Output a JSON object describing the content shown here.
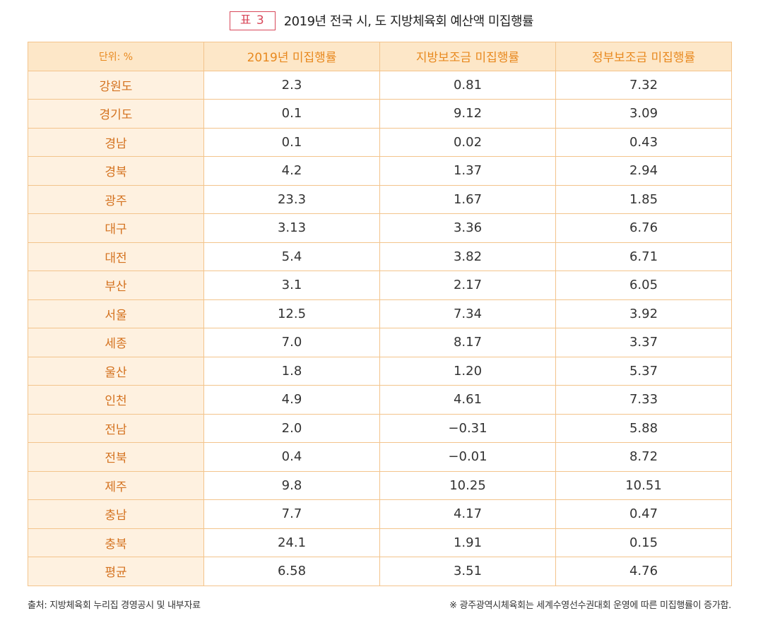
{
  "header": {
    "badge": "표 3",
    "title": "2019년 전국 시, 도 지방체육회 예산액 미집행률"
  },
  "table": {
    "columns": [
      "단위: %",
      "2019년 미집행률",
      "지방보조금 미집행률",
      "정부보조금 미집행률"
    ],
    "rows": [
      [
        "강원도",
        "2.3",
        "0.81",
        "7.32"
      ],
      [
        "경기도",
        "0.1",
        "9.12",
        "3.09"
      ],
      [
        "경남",
        "0.1",
        "0.02",
        "0.43"
      ],
      [
        "경북",
        "4.2",
        "1.37",
        "2.94"
      ],
      [
        "광주",
        "23.3",
        "1.67",
        "1.85"
      ],
      [
        "대구",
        "3.13",
        "3.36",
        "6.76"
      ],
      [
        "대전",
        "5.4",
        "3.82",
        "6.71"
      ],
      [
        "부산",
        "3.1",
        "2.17",
        "6.05"
      ],
      [
        "서울",
        "12.5",
        "7.34",
        "3.92"
      ],
      [
        "세종",
        "7.0",
        "8.17",
        "3.37"
      ],
      [
        "울산",
        "1.8",
        "1.20",
        "5.37"
      ],
      [
        "인천",
        "4.9",
        "4.61",
        "7.33"
      ],
      [
        "전남",
        "2.0",
        "−0.31",
        "5.88"
      ],
      [
        "전북",
        "0.4",
        "−0.01",
        "8.72"
      ],
      [
        "제주",
        "9.8",
        "10.25",
        "10.51"
      ],
      [
        "충남",
        "7.7",
        "4.17",
        "0.47"
      ],
      [
        "충북",
        "24.1",
        "1.91",
        "0.15"
      ],
      [
        "평균",
        "6.58",
        "3.51",
        "4.76"
      ]
    ]
  },
  "footer": {
    "source": "출처: 지방체육회 누리집 경영공시 및 내부자료",
    "note": "※ 광주광역시체육회는 세계수영선수권대회 운영에 따른 미집행률이 증가함."
  },
  "colors": {
    "badge_border": "#d8485a",
    "header_bg": "#fde7c8",
    "header_text": "#e8891f",
    "region_bg": "#fef1e0",
    "region_text": "#d4721f",
    "border": "#f3c48c"
  }
}
